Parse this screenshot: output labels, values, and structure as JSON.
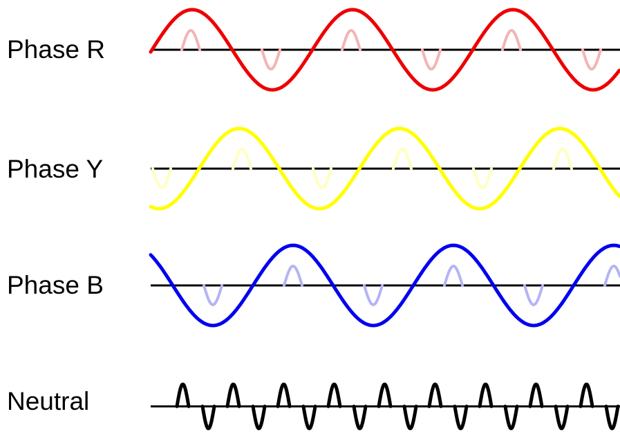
{
  "labels": {
    "phase_r": "Phase R",
    "phase_y": "Phase Y",
    "phase_b": "Phase B",
    "neutral": "Neutral"
  },
  "colors": {
    "phase_r": "#ee0000",
    "phase_r_harmonic": "#f4b4b4",
    "phase_y": "#ffff00",
    "phase_y_harmonic": "#ffffc0",
    "phase_b": "#0000ee",
    "phase_b_harmonic": "#b4b4f4",
    "neutral": "#000000",
    "axis": "#000000"
  }
}
